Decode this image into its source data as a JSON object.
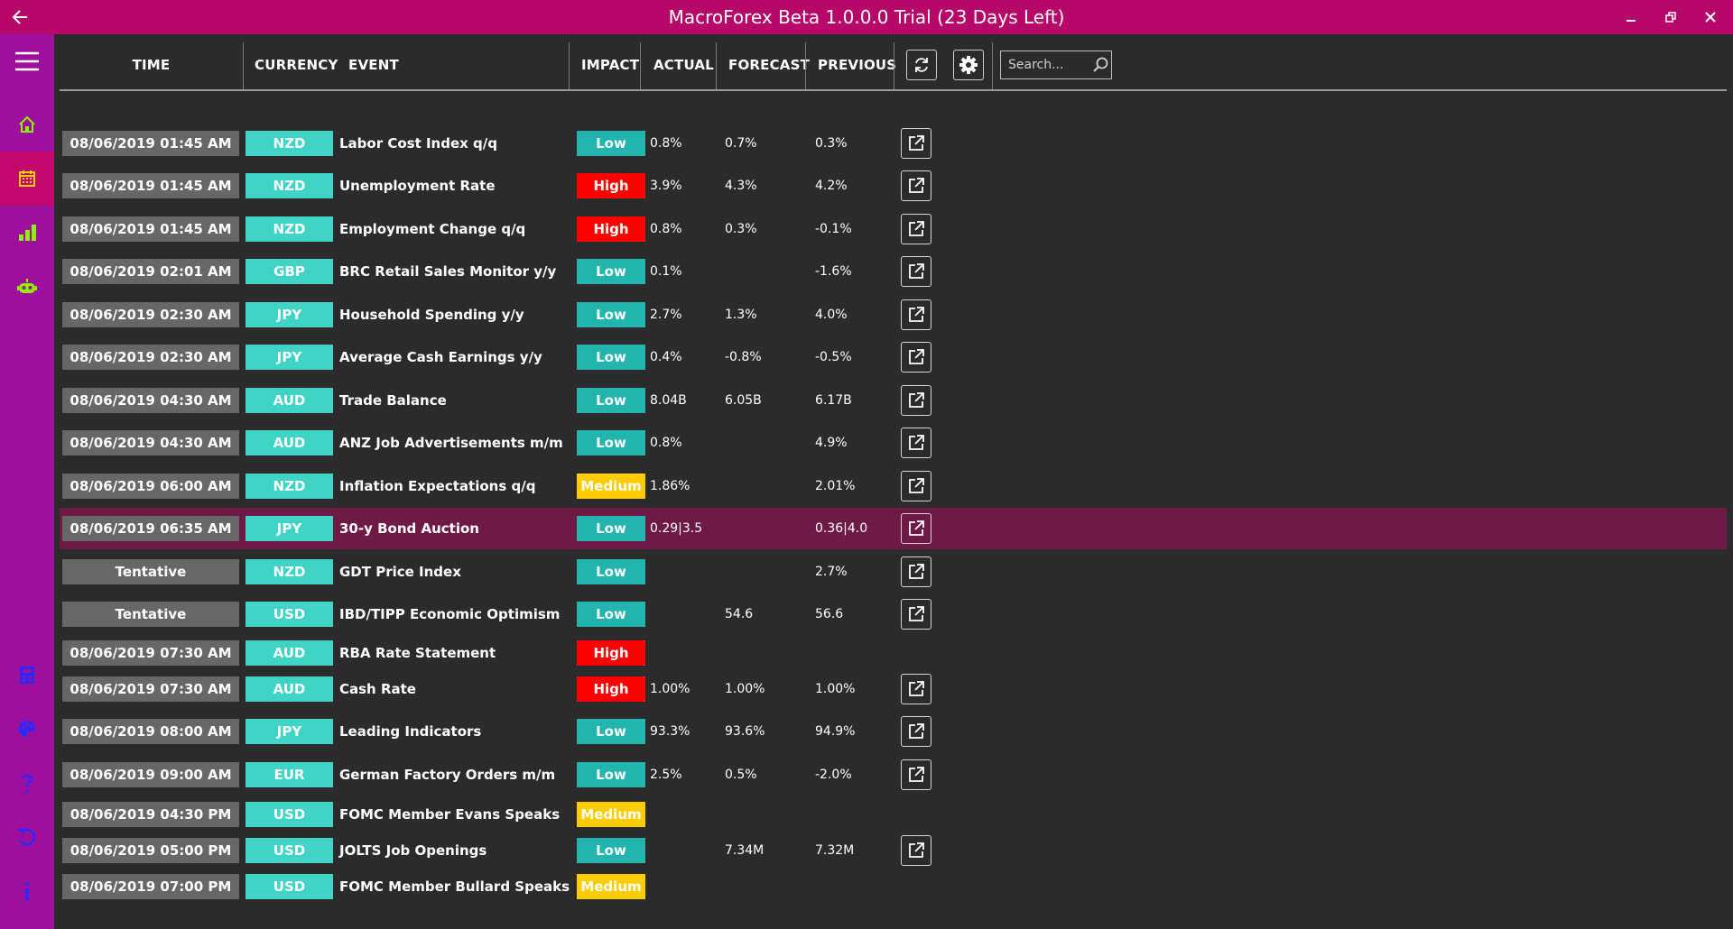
{
  "window": {
    "title": "MacroForex Beta 1.0.0.0 Trial (23 Days Left)"
  },
  "colors": {
    "titlebar": "#b7086a",
    "sidebar": "#9e0f9e",
    "sidebar_active": "#c4066f",
    "background": "#2b2b2b",
    "time_bg": "#676767",
    "currency_bg": "#3fd4c6",
    "impact_low": "#22b5ae",
    "impact_high": "#ff0000",
    "impact_medium": "#ffcc00",
    "selected_row": "#6e1a45"
  },
  "sidebar": {
    "items": [
      {
        "icon": "menu-icon"
      },
      {
        "icon": "home-icon"
      },
      {
        "icon": "calendar-icon",
        "active": true
      },
      {
        "icon": "bar-chart-icon"
      },
      {
        "icon": "robot-icon"
      },
      {
        "icon": "calculator-icon"
      },
      {
        "icon": "palette-icon"
      },
      {
        "icon": "help-icon"
      },
      {
        "icon": "undo-icon"
      },
      {
        "icon": "info-icon"
      }
    ]
  },
  "header": {
    "columns": {
      "time": "TIME",
      "currency": "CURRENCY",
      "event": "EVENT",
      "impact": "IMPACT",
      "actual": "ACTUAL",
      "forecast": "FORECAST",
      "previous": "PREVIOUS"
    },
    "search_placeholder": "Search..."
  },
  "events": [
    {
      "time": "08/06/2019 01:45 AM",
      "currency": "NZD",
      "event": "Labor Cost Index q/q",
      "impact": "Low",
      "actual": "0.8%",
      "forecast": "0.7%",
      "previous": "0.3%",
      "has_link": true
    },
    {
      "time": "08/06/2019 01:45 AM",
      "currency": "NZD",
      "event": "Unemployment Rate",
      "impact": "High",
      "actual": "3.9%",
      "forecast": "4.3%",
      "previous": "4.2%",
      "has_link": true
    },
    {
      "time": "08/06/2019 01:45 AM",
      "currency": "NZD",
      "event": "Employment Change q/q",
      "impact": "High",
      "actual": "0.8%",
      "forecast": "0.3%",
      "previous": "-0.1%",
      "has_link": true
    },
    {
      "time": "08/06/2019 02:01 AM",
      "currency": "GBP",
      "event": "BRC Retail Sales Monitor y/y",
      "impact": "Low",
      "actual": "0.1%",
      "forecast": "",
      "previous": "-1.6%",
      "has_link": true
    },
    {
      "time": "08/06/2019 02:30 AM",
      "currency": "JPY",
      "event": "Household Spending y/y",
      "impact": "Low",
      "actual": "2.7%",
      "forecast": "1.3%",
      "previous": "4.0%",
      "has_link": true
    },
    {
      "time": "08/06/2019 02:30 AM",
      "currency": "JPY",
      "event": "Average Cash Earnings y/y",
      "impact": "Low",
      "actual": "0.4%",
      "forecast": "-0.8%",
      "previous": "-0.5%",
      "has_link": true
    },
    {
      "time": "08/06/2019 04:30 AM",
      "currency": "AUD",
      "event": "Trade Balance",
      "impact": "Low",
      "actual": "8.04B",
      "forecast": "6.05B",
      "previous": "6.17B",
      "has_link": true
    },
    {
      "time": "08/06/2019 04:30 AM",
      "currency": "AUD",
      "event": "ANZ Job Advertisements m/m",
      "impact": "Low",
      "actual": "0.8%",
      "forecast": "",
      "previous": "4.9%",
      "has_link": true
    },
    {
      "time": "08/06/2019 06:00 AM",
      "currency": "NZD",
      "event": "Inflation Expectations q/q",
      "impact": "Medium",
      "actual": "1.86%",
      "forecast": "",
      "previous": "2.01%",
      "has_link": true
    },
    {
      "time": "08/06/2019 06:35 AM",
      "currency": "JPY",
      "event": "30-y Bond Auction",
      "impact": "Low",
      "actual": "0.29|3.5",
      "forecast": "",
      "previous": "0.36|4.0",
      "has_link": true,
      "selected": true
    },
    {
      "time": "Tentative",
      "currency": "NZD",
      "event": "GDT Price Index",
      "impact": "Low",
      "actual": "",
      "forecast": "",
      "previous": "2.7%",
      "has_link": true
    },
    {
      "time": "Tentative",
      "currency": "USD",
      "event": "IBD/TIPP Economic Optimism",
      "impact": "Low",
      "actual": "",
      "forecast": "54.6",
      "previous": "56.6",
      "has_link": true
    },
    {
      "time": "08/06/2019 07:30 AM",
      "currency": "AUD",
      "event": "RBA Rate Statement",
      "impact": "High",
      "actual": "",
      "forecast": "",
      "previous": "",
      "has_link": false
    },
    {
      "time": "08/06/2019 07:30 AM",
      "currency": "AUD",
      "event": "Cash Rate",
      "impact": "High",
      "actual": "1.00%",
      "forecast": "1.00%",
      "previous": "1.00%",
      "has_link": true
    },
    {
      "time": "08/06/2019 08:00 AM",
      "currency": "JPY",
      "event": "Leading Indicators",
      "impact": "Low",
      "actual": "93.3%",
      "forecast": "93.6%",
      "previous": "94.9%",
      "has_link": true
    },
    {
      "time": "08/06/2019 09:00 AM",
      "currency": "EUR",
      "event": "German Factory Orders m/m",
      "impact": "Low",
      "actual": "2.5%",
      "forecast": "0.5%",
      "previous": "-2.0%",
      "has_link": true
    },
    {
      "time": "08/06/2019 04:30 PM",
      "currency": "USD",
      "event": "FOMC Member Evans Speaks",
      "impact": "Medium",
      "actual": "",
      "forecast": "",
      "previous": "",
      "has_link": false
    },
    {
      "time": "08/06/2019 05:00 PM",
      "currency": "USD",
      "event": "JOLTS Job Openings",
      "impact": "Low",
      "actual": "",
      "forecast": "7.34M",
      "previous": "7.32M",
      "has_link": true
    },
    {
      "time": "08/06/2019 07:00 PM",
      "currency": "USD",
      "event": "FOMC Member Bullard Speaks",
      "impact": "Medium",
      "actual": "",
      "forecast": "",
      "previous": "",
      "has_link": false
    }
  ]
}
